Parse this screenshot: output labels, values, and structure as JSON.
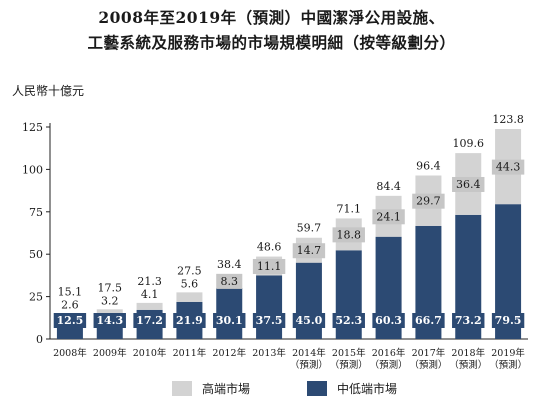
{
  "title_line1": "2008年至2019年（預測）中國潔淨公用設施、",
  "title_line2": "工藝系統及服務市場的市場規模明細（按等級劃分）",
  "legend": {
    "high_label": "高端市場",
    "low_label": "中低端市場",
    "high_color": "#d3d3d3",
    "low_color": "#2c4a73"
  },
  "chart_data": {
    "type": "bar",
    "stacked": true,
    "ylabel": "人民幣十億元",
    "ylim": [
      0,
      125
    ],
    "yticks": [
      0,
      25,
      50,
      75,
      100,
      125
    ],
    "categories": [
      [
        "2008年"
      ],
      [
        "2009年"
      ],
      [
        "2010年"
      ],
      [
        "2011年"
      ],
      [
        "2012年"
      ],
      [
        "2013年"
      ],
      [
        "2014年",
        "（預測）"
      ],
      [
        "2015年",
        "（預測）"
      ],
      [
        "2016年",
        "（預測）"
      ],
      [
        "2017年",
        "（預測）"
      ],
      [
        "2018年",
        "（預測）"
      ],
      [
        "2019年",
        "（預測）"
      ]
    ],
    "series": [
      {
        "name": "中低端市場",
        "values": [
          12.5,
          14.3,
          17.2,
          21.9,
          30.1,
          37.5,
          45.0,
          52.3,
          60.3,
          66.7,
          73.2,
          79.5
        ]
      },
      {
        "name": "高端市場",
        "values": [
          2.6,
          3.2,
          4.1,
          5.6,
          8.3,
          11.1,
          14.7,
          18.8,
          24.1,
          29.7,
          36.4,
          44.3
        ]
      }
    ],
    "totals": [
      15.1,
      17.5,
      21.3,
      27.5,
      38.4,
      48.6,
      59.7,
      71.1,
      84.4,
      96.4,
      109.6,
      123.8
    ],
    "low_labels": [
      "12.5",
      "14.3",
      "17.2",
      "21.9",
      "30.1",
      "37.5",
      "45.0",
      "52.3",
      "60.3",
      "66.7",
      "73.2",
      "79.5"
    ],
    "high_labels": [
      "2.6",
      "3.2",
      "4.1",
      "5.6",
      "8.3",
      "11.1",
      "14.7",
      "18.8",
      "24.1",
      "29.7",
      "36.4",
      "44.3"
    ],
    "total_labels": [
      "15.1",
      "17.5",
      "21.3",
      "27.5",
      "38.4",
      "48.6",
      "59.7",
      "71.1",
      "84.4",
      "96.4",
      "109.6",
      "123.8"
    ],
    "ytick_labels": [
      "0",
      "25",
      "50",
      "75",
      "100",
      "125"
    ]
  }
}
